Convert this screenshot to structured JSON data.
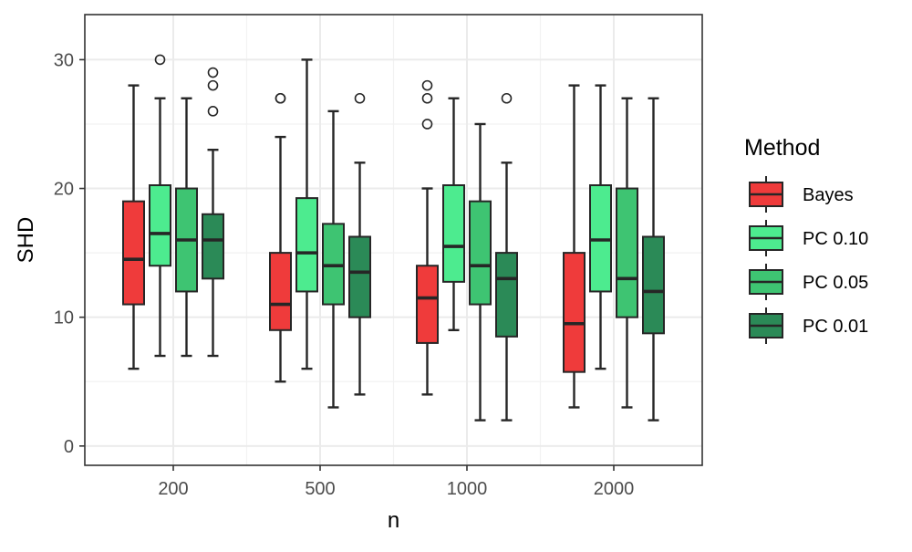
{
  "chart_data": {
    "type": "boxplot",
    "xlabel": "n",
    "ylabel": "SHD",
    "categories": [
      "200",
      "500",
      "1000",
      "2000"
    ],
    "yticks": [
      0,
      10,
      20,
      30
    ],
    "ylim": [
      -1.5,
      33.5
    ],
    "grid": true,
    "legend": {
      "title": "Method",
      "placement": "right"
    },
    "series": [
      {
        "name": "Bayes",
        "color": "#ef3b3b",
        "boxes": [
          {
            "category": "200",
            "whisker_low": 6,
            "q1": 11,
            "median": 14.5,
            "q3": 19,
            "whisker_high": 28,
            "outliers": []
          },
          {
            "category": "500",
            "whisker_low": 5,
            "q1": 9,
            "median": 11,
            "q3": 15,
            "whisker_high": 24,
            "outliers": [
              27,
              27
            ]
          },
          {
            "category": "1000",
            "whisker_low": 4,
            "q1": 8,
            "median": 11.5,
            "q3": 14,
            "whisker_high": 20,
            "outliers": [
              25,
              27,
              28
            ]
          },
          {
            "category": "2000",
            "whisker_low": 3,
            "q1": 5.75,
            "median": 9.5,
            "q3": 15,
            "whisker_high": 28,
            "outliers": []
          }
        ]
      },
      {
        "name": "PC 0.10",
        "color": "#4deb8f",
        "boxes": [
          {
            "category": "200",
            "whisker_low": 7,
            "q1": 14,
            "median": 16.5,
            "q3": 20.25,
            "whisker_high": 27,
            "outliers": [
              30
            ]
          },
          {
            "category": "500",
            "whisker_low": 6,
            "q1": 12,
            "median": 15,
            "q3": 19.25,
            "whisker_high": 30,
            "outliers": []
          },
          {
            "category": "1000",
            "whisker_low": 9,
            "q1": 12.75,
            "median": 15.5,
            "q3": 20.25,
            "whisker_high": 27,
            "outliers": []
          },
          {
            "category": "2000",
            "whisker_low": 6,
            "q1": 12,
            "median": 16,
            "q3": 20.25,
            "whisker_high": 28,
            "outliers": []
          }
        ]
      },
      {
        "name": "PC 0.05",
        "color": "#3ec472",
        "boxes": [
          {
            "category": "200",
            "whisker_low": 7,
            "q1": 12,
            "median": 16,
            "q3": 20,
            "whisker_high": 27,
            "outliers": []
          },
          {
            "category": "500",
            "whisker_low": 3,
            "q1": 11,
            "median": 14,
            "q3": 17.25,
            "whisker_high": 26,
            "outliers": []
          },
          {
            "category": "1000",
            "whisker_low": 2,
            "q1": 11,
            "median": 14,
            "q3": 19,
            "whisker_high": 25,
            "outliers": []
          },
          {
            "category": "2000",
            "whisker_low": 3,
            "q1": 10,
            "median": 13,
            "q3": 20,
            "whisker_high": 27,
            "outliers": []
          }
        ]
      },
      {
        "name": "PC 0.01",
        "color": "#2b8a57",
        "boxes": [
          {
            "category": "200",
            "whisker_low": 7,
            "q1": 13,
            "median": 16,
            "q3": 18,
            "whisker_high": 23,
            "outliers": [
              26,
              28,
              29
            ]
          },
          {
            "category": "500",
            "whisker_low": 4,
            "q1": 10,
            "median": 13.5,
            "q3": 16.25,
            "whisker_high": 22,
            "outliers": [
              27
            ]
          },
          {
            "category": "1000",
            "whisker_low": 2,
            "q1": 8.5,
            "median": 13,
            "q3": 15,
            "whisker_high": 22,
            "outliers": [
              27
            ]
          },
          {
            "category": "2000",
            "whisker_low": 2,
            "q1": 8.75,
            "median": 12,
            "q3": 16.25,
            "whisker_high": 27,
            "outliers": []
          }
        ]
      }
    ]
  }
}
